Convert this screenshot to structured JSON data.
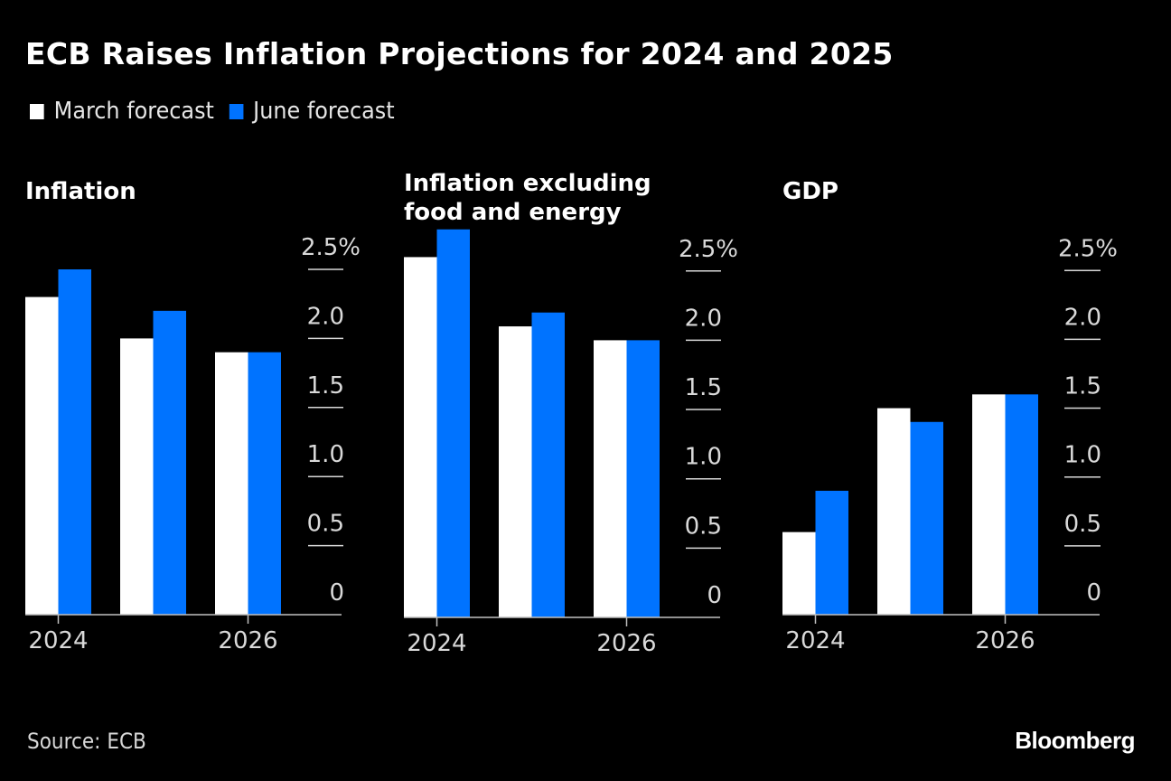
{
  "title": "ECB Raises Inflation Projections for 2024 and 2025",
  "legend": [
    {
      "label": "March forecast",
      "color": "#ffffff"
    },
    {
      "label": "June forecast",
      "color": "#0073ff"
    }
  ],
  "source": "Source: ECB",
  "brand": "Bloomberg",
  "chart_data": [
    {
      "type": "bar",
      "title": "Inflation",
      "categories": [
        "2024",
        "2025",
        "2026"
      ],
      "x_tick_labels": [
        "2024",
        "",
        "2026"
      ],
      "series": [
        {
          "name": "March forecast",
          "values": [
            2.3,
            2.0,
            1.9
          ]
        },
        {
          "name": "June forecast",
          "values": [
            2.5,
            2.2,
            1.9
          ]
        }
      ],
      "ylim": [
        0,
        2.5
      ],
      "y_ticks": [
        0,
        0.5,
        1.0,
        1.5,
        2.0,
        2.5
      ],
      "y_tick_labels": [
        "0",
        "0.5",
        "1.0",
        "1.5",
        "2.0",
        "2.5%"
      ],
      "ylabel": "",
      "xlabel": "",
      "y_axis_position": "right",
      "grid": false
    },
    {
      "type": "bar",
      "title": "Inflation excluding food and energy",
      "title_lines": [
        "Inflation excluding",
        "food and energy"
      ],
      "categories": [
        "2024",
        "2025",
        "2026"
      ],
      "x_tick_labels": [
        "2024",
        "",
        "2026"
      ],
      "series": [
        {
          "name": "March forecast",
          "values": [
            2.6,
            2.1,
            2.0
          ]
        },
        {
          "name": "June forecast",
          "values": [
            2.8,
            2.2,
            2.0
          ]
        }
      ],
      "ylim": [
        0,
        2.5
      ],
      "y_ticks": [
        0,
        0.5,
        1.0,
        1.5,
        2.0,
        2.5
      ],
      "y_tick_labels": [
        "0",
        "0.5",
        "1.0",
        "1.5",
        "2.0",
        "2.5%"
      ],
      "ylabel": "",
      "xlabel": "",
      "y_axis_position": "right",
      "grid": false
    },
    {
      "type": "bar",
      "title": "GDP",
      "categories": [
        "2024",
        "2025",
        "2026"
      ],
      "x_tick_labels": [
        "2024",
        "",
        "2026"
      ],
      "series": [
        {
          "name": "March forecast",
          "values": [
            0.6,
            1.5,
            1.6
          ]
        },
        {
          "name": "June forecast",
          "values": [
            0.9,
            1.4,
            1.6
          ]
        }
      ],
      "ylim": [
        0,
        2.5
      ],
      "y_ticks": [
        0,
        0.5,
        1.0,
        1.5,
        2.0,
        2.5
      ],
      "y_tick_labels": [
        "0",
        "0.5",
        "1.0",
        "1.5",
        "2.0",
        "2.5%"
      ],
      "ylabel": "",
      "xlabel": "",
      "y_axis_position": "right",
      "grid": false
    }
  ]
}
